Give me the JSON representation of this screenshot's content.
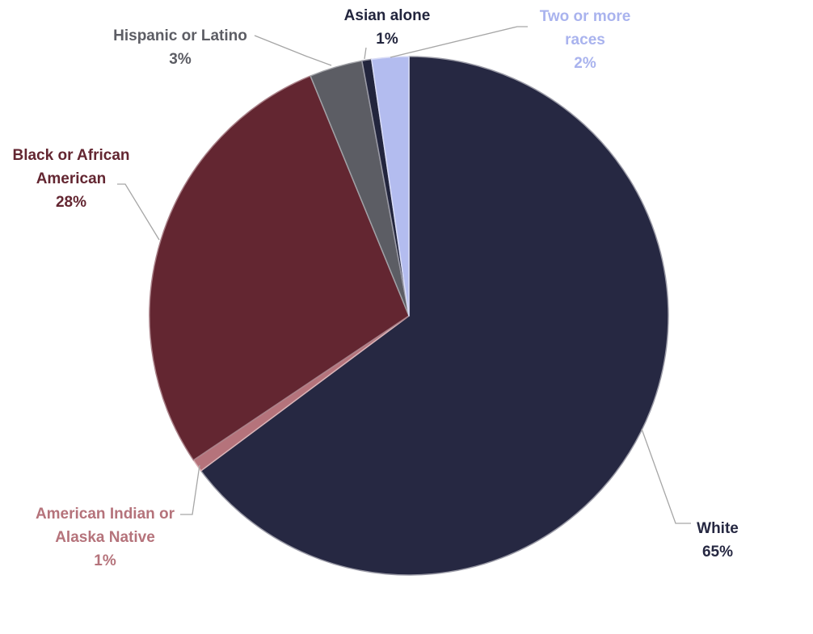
{
  "chart_data": {
    "type": "pie",
    "title": "",
    "start_angle_deg": 0,
    "direction": "clockwise",
    "slices": [
      {
        "label": "White",
        "label_lines": [
          "White"
        ],
        "pct_label": "65%",
        "value": 64.8,
        "color": "#262842",
        "label_color": "#262842",
        "outline": "#9a9aa6"
      },
      {
        "label": "American Indian or Alaska Native",
        "label_lines": [
          "American Indian or",
          "Alaska Native"
        ],
        "pct_label": "1%",
        "value": 0.8,
        "color": "#b5737b",
        "label_color": "#b5737b",
        "outline": "#d9b3b7"
      },
      {
        "label": "Black or African American",
        "label_lines": [
          "Black or African",
          "American"
        ],
        "pct_label": "28%",
        "value": 28.2,
        "color": "#632631",
        "label_color": "#632631",
        "outline": "#a98088"
      },
      {
        "label": "Hispanic or Latino",
        "label_lines": [
          "Hispanic or Latino"
        ],
        "pct_label": "3%",
        "value": 3.3,
        "color": "#5c5d64",
        "label_color": "#5c5d64",
        "outline": "#a0a1a6"
      },
      {
        "label": "Asian alone",
        "label_lines": [
          "Asian alone"
        ],
        "pct_label": "1%",
        "value": 0.6,
        "color": "#22253d",
        "label_color": "#22253d",
        "outline": "#9a9aa6"
      },
      {
        "label": "Two or more races",
        "label_lines": [
          "Two or more",
          "races"
        ],
        "pct_label": "2%",
        "value": 2.3,
        "color": "#b3bcef",
        "label_color": "#a9b3ee",
        "outline": "#d8dcf6"
      }
    ]
  }
}
